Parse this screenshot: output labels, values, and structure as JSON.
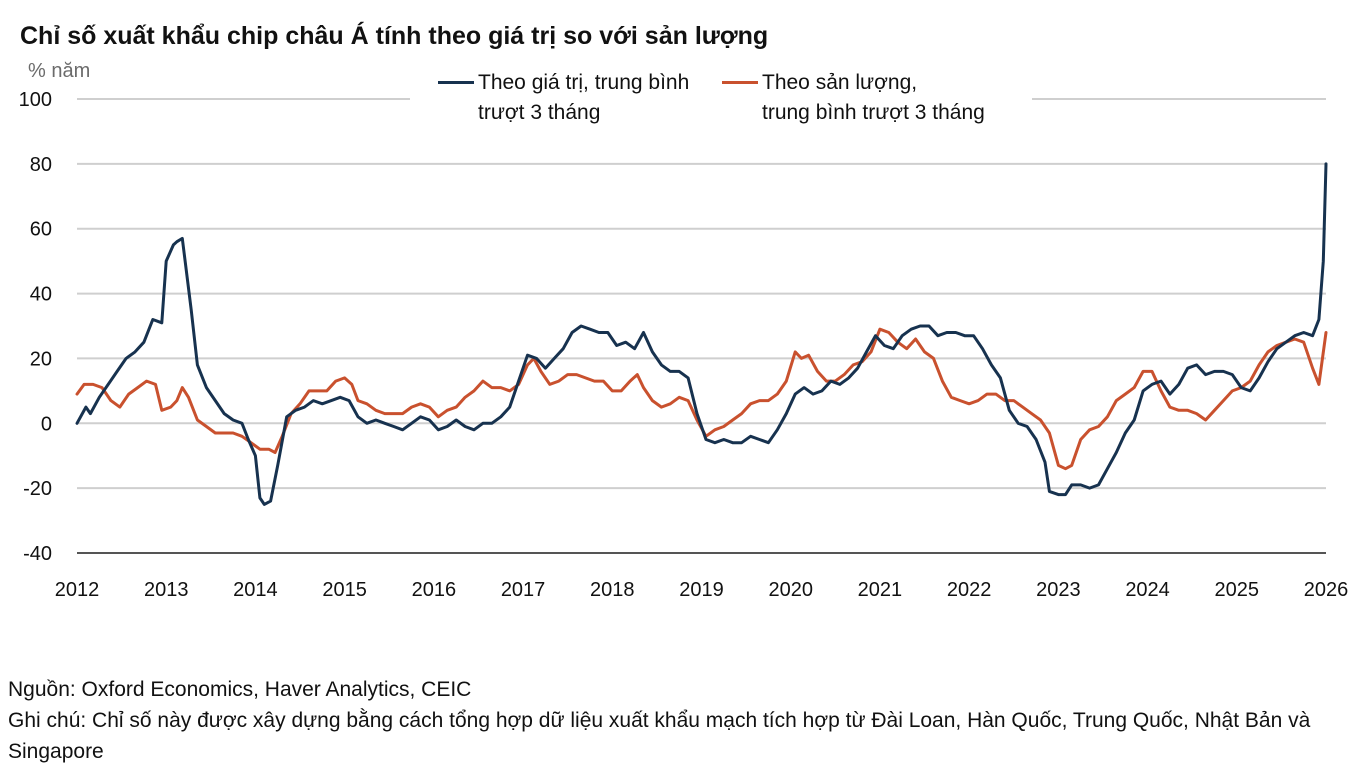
{
  "title": "Chỉ số xuất khẩu chip châu Á tính theo giá trị so với sản lượng",
  "unit_label": "% năm",
  "legend": {
    "value_line1": "Theo giá trị, trung bình",
    "value_line2": "trượt 3 tháng",
    "volume_line1": "Theo sản lượng,",
    "volume_line2": "trung bình trượt 3 tháng"
  },
  "footer": {
    "source": "Nguồn: Oxford Economics, Haver Analytics, CEIC",
    "note": "Ghi chú: Chỉ số này được xây dựng bằng cách tổng hợp dữ liệu xuất khẩu mạch tích hợp từ Đài Loan, Hàn Quốc, Trung Quốc, Nhật Bản và Singapore"
  },
  "chart_data": {
    "type": "line",
    "title": "Chỉ số xuất khẩu chip châu Á tính theo giá trị so với sản lượng",
    "ylabel": "% năm",
    "xlabel": "",
    "ylim": [
      -40,
      100
    ],
    "xlim": [
      2012,
      2026
    ],
    "yticks": [
      100,
      80,
      60,
      40,
      20,
      0,
      -20,
      -40
    ],
    "xticks": [
      2012,
      2013,
      2014,
      2015,
      2016,
      2017,
      2018,
      2019,
      2020,
      2021,
      2022,
      2023,
      2024,
      2025,
      2026
    ],
    "grid": "horizontal",
    "legend_position": "top-center",
    "series": [
      {
        "name": "Theo giá trị, trung bình trượt 3 tháng",
        "color": "#17324f",
        "points": [
          [
            2012.0,
            0
          ],
          [
            2012.1,
            5
          ],
          [
            2012.15,
            3
          ],
          [
            2012.25,
            8
          ],
          [
            2012.35,
            12
          ],
          [
            2012.45,
            16
          ],
          [
            2012.55,
            20
          ],
          [
            2012.65,
            22
          ],
          [
            2012.75,
            25
          ],
          [
            2012.85,
            32
          ],
          [
            2012.95,
            31
          ],
          [
            2013.0,
            50
          ],
          [
            2013.08,
            55
          ],
          [
            2013.12,
            56
          ],
          [
            2013.18,
            57
          ],
          [
            2013.28,
            35
          ],
          [
            2013.35,
            18
          ],
          [
            2013.45,
            11
          ],
          [
            2013.55,
            7
          ],
          [
            2013.65,
            3
          ],
          [
            2013.75,
            1
          ],
          [
            2013.85,
            0
          ],
          [
            2013.92,
            -5
          ],
          [
            2014.0,
            -10
          ],
          [
            2014.05,
            -23
          ],
          [
            2014.1,
            -25
          ],
          [
            2014.17,
            -24
          ],
          [
            2014.25,
            -13
          ],
          [
            2014.35,
            2
          ],
          [
            2014.45,
            4
          ],
          [
            2014.55,
            5
          ],
          [
            2014.65,
            7
          ],
          [
            2014.75,
            6
          ],
          [
            2014.85,
            7
          ],
          [
            2014.95,
            8
          ],
          [
            2015.05,
            7
          ],
          [
            2015.15,
            2
          ],
          [
            2015.25,
            0
          ],
          [
            2015.35,
            1
          ],
          [
            2015.45,
            0
          ],
          [
            2015.55,
            -1
          ],
          [
            2015.65,
            -2
          ],
          [
            2015.75,
            0
          ],
          [
            2015.85,
            2
          ],
          [
            2015.95,
            1
          ],
          [
            2016.05,
            -2
          ],
          [
            2016.15,
            -1
          ],
          [
            2016.25,
            1
          ],
          [
            2016.35,
            -1
          ],
          [
            2016.45,
            -2
          ],
          [
            2016.55,
            0
          ],
          [
            2016.65,
            0
          ],
          [
            2016.75,
            2
          ],
          [
            2016.85,
            5
          ],
          [
            2016.95,
            13
          ],
          [
            2017.05,
            21
          ],
          [
            2017.15,
            20
          ],
          [
            2017.25,
            17
          ],
          [
            2017.35,
            20
          ],
          [
            2017.45,
            23
          ],
          [
            2017.55,
            28
          ],
          [
            2017.65,
            30
          ],
          [
            2017.75,
            29
          ],
          [
            2017.85,
            28
          ],
          [
            2017.95,
            28
          ],
          [
            2018.05,
            24
          ],
          [
            2018.15,
            25
          ],
          [
            2018.25,
            23
          ],
          [
            2018.35,
            28
          ],
          [
            2018.45,
            22
          ],
          [
            2018.55,
            18
          ],
          [
            2018.65,
            16
          ],
          [
            2018.75,
            16
          ],
          [
            2018.85,
            14
          ],
          [
            2018.95,
            3
          ],
          [
            2019.05,
            -5
          ],
          [
            2019.15,
            -6
          ],
          [
            2019.25,
            -5
          ],
          [
            2019.35,
            -6
          ],
          [
            2019.45,
            -6
          ],
          [
            2019.55,
            -4
          ],
          [
            2019.65,
            -5
          ],
          [
            2019.75,
            -6
          ],
          [
            2019.85,
            -2
          ],
          [
            2019.95,
            3
          ],
          [
            2020.05,
            9
          ],
          [
            2020.15,
            11
          ],
          [
            2020.25,
            9
          ],
          [
            2020.35,
            10
          ],
          [
            2020.45,
            13
          ],
          [
            2020.55,
            12
          ],
          [
            2020.65,
            14
          ],
          [
            2020.75,
            17
          ],
          [
            2020.85,
            22
          ],
          [
            2020.95,
            27
          ],
          [
            2021.05,
            24
          ],
          [
            2021.15,
            23
          ],
          [
            2021.25,
            27
          ],
          [
            2021.35,
            29
          ],
          [
            2021.45,
            30
          ],
          [
            2021.55,
            30
          ],
          [
            2021.65,
            27
          ],
          [
            2021.75,
            28
          ],
          [
            2021.85,
            28
          ],
          [
            2021.95,
            27
          ],
          [
            2022.05,
            27
          ],
          [
            2022.15,
            23
          ],
          [
            2022.25,
            18
          ],
          [
            2022.35,
            14
          ],
          [
            2022.45,
            4
          ],
          [
            2022.55,
            0
          ],
          [
            2022.65,
            -1
          ],
          [
            2022.75,
            -5
          ],
          [
            2022.85,
            -12
          ],
          [
            2022.9,
            -21
          ],
          [
            2023.0,
            -22
          ],
          [
            2023.08,
            -22
          ],
          [
            2023.15,
            -19
          ],
          [
            2023.25,
            -19
          ],
          [
            2023.35,
            -20
          ],
          [
            2023.45,
            -19
          ],
          [
            2023.55,
            -14
          ],
          [
            2023.65,
            -9
          ],
          [
            2023.75,
            -3
          ],
          [
            2023.85,
            1
          ],
          [
            2023.95,
            10
          ],
          [
            2024.05,
            12
          ],
          [
            2024.15,
            13
          ],
          [
            2024.25,
            9
          ],
          [
            2024.35,
            12
          ],
          [
            2024.45,
            17
          ],
          [
            2024.55,
            18
          ],
          [
            2024.65,
            15
          ],
          [
            2024.75,
            16
          ],
          [
            2024.85,
            16
          ],
          [
            2024.95,
            15
          ],
          [
            2025.05,
            11
          ],
          [
            2025.15,
            10
          ],
          [
            2025.25,
            14
          ],
          [
            2025.35,
            19
          ],
          [
            2025.45,
            23
          ],
          [
            2025.55,
            25
          ],
          [
            2025.65,
            27
          ],
          [
            2025.75,
            28
          ],
          [
            2025.85,
            27
          ],
          [
            2025.92,
            32
          ],
          [
            2025.97,
            50
          ],
          [
            2026.0,
            80
          ]
        ]
      },
      {
        "name": "Theo sản lượng, trung bình trượt 3 tháng",
        "color": "#c9512e",
        "points": [
          [
            2012.0,
            9
          ],
          [
            2012.08,
            12
          ],
          [
            2012.18,
            12
          ],
          [
            2012.28,
            11
          ],
          [
            2012.38,
            7
          ],
          [
            2012.48,
            5
          ],
          [
            2012.58,
            9
          ],
          [
            2012.68,
            11
          ],
          [
            2012.78,
            13
          ],
          [
            2012.88,
            12
          ],
          [
            2012.95,
            4
          ],
          [
            2013.05,
            5
          ],
          [
            2013.12,
            7
          ],
          [
            2013.18,
            11
          ],
          [
            2013.25,
            8
          ],
          [
            2013.35,
            1
          ],
          [
            2013.45,
            -1
          ],
          [
            2013.55,
            -3
          ],
          [
            2013.65,
            -3
          ],
          [
            2013.75,
            -3
          ],
          [
            2013.85,
            -4
          ],
          [
            2013.95,
            -6
          ],
          [
            2014.05,
            -8
          ],
          [
            2014.15,
            -8
          ],
          [
            2014.22,
            -9
          ],
          [
            2014.3,
            -4
          ],
          [
            2014.4,
            3
          ],
          [
            2014.5,
            6
          ],
          [
            2014.6,
            10
          ],
          [
            2014.7,
            10
          ],
          [
            2014.8,
            10
          ],
          [
            2014.9,
            13
          ],
          [
            2015.0,
            14
          ],
          [
            2015.08,
            12
          ],
          [
            2015.15,
            7
          ],
          [
            2015.25,
            6
          ],
          [
            2015.35,
            4
          ],
          [
            2015.45,
            3
          ],
          [
            2015.55,
            3
          ],
          [
            2015.65,
            3
          ],
          [
            2015.75,
            5
          ],
          [
            2015.85,
            6
          ],
          [
            2015.95,
            5
          ],
          [
            2016.05,
            2
          ],
          [
            2016.15,
            4
          ],
          [
            2016.25,
            5
          ],
          [
            2016.35,
            8
          ],
          [
            2016.45,
            10
          ],
          [
            2016.55,
            13
          ],
          [
            2016.65,
            11
          ],
          [
            2016.75,
            11
          ],
          [
            2016.85,
            10
          ],
          [
            2016.95,
            12
          ],
          [
            2017.05,
            18
          ],
          [
            2017.12,
            20
          ],
          [
            2017.2,
            16
          ],
          [
            2017.3,
            12
          ],
          [
            2017.4,
            13
          ],
          [
            2017.5,
            15
          ],
          [
            2017.6,
            15
          ],
          [
            2017.7,
            14
          ],
          [
            2017.8,
            13
          ],
          [
            2017.9,
            13
          ],
          [
            2018.0,
            10
          ],
          [
            2018.1,
            10
          ],
          [
            2018.2,
            13
          ],
          [
            2018.28,
            15
          ],
          [
            2018.35,
            11
          ],
          [
            2018.45,
            7
          ],
          [
            2018.55,
            5
          ],
          [
            2018.65,
            6
          ],
          [
            2018.75,
            8
          ],
          [
            2018.85,
            7
          ],
          [
            2018.95,
            1
          ],
          [
            2019.05,
            -4
          ],
          [
            2019.15,
            -2
          ],
          [
            2019.25,
            -1
          ],
          [
            2019.35,
            1
          ],
          [
            2019.45,
            3
          ],
          [
            2019.55,
            6
          ],
          [
            2019.65,
            7
          ],
          [
            2019.75,
            7
          ],
          [
            2019.85,
            9
          ],
          [
            2019.95,
            13
          ],
          [
            2020.05,
            22
          ],
          [
            2020.12,
            20
          ],
          [
            2020.2,
            21
          ],
          [
            2020.3,
            16
          ],
          [
            2020.4,
            13
          ],
          [
            2020.5,
            13
          ],
          [
            2020.6,
            15
          ],
          [
            2020.7,
            18
          ],
          [
            2020.8,
            19
          ],
          [
            2020.9,
            22
          ],
          [
            2021.0,
            29
          ],
          [
            2021.1,
            28
          ],
          [
            2021.2,
            25
          ],
          [
            2021.3,
            23
          ],
          [
            2021.4,
            26
          ],
          [
            2021.5,
            22
          ],
          [
            2021.6,
            20
          ],
          [
            2021.7,
            13
          ],
          [
            2021.8,
            8
          ],
          [
            2021.9,
            7
          ],
          [
            2022.0,
            6
          ],
          [
            2022.1,
            7
          ],
          [
            2022.2,
            9
          ],
          [
            2022.3,
            9
          ],
          [
            2022.4,
            7
          ],
          [
            2022.5,
            7
          ],
          [
            2022.6,
            5
          ],
          [
            2022.7,
            3
          ],
          [
            2022.8,
            1
          ],
          [
            2022.9,
            -3
          ],
          [
            2023.0,
            -13
          ],
          [
            2023.08,
            -14
          ],
          [
            2023.15,
            -13
          ],
          [
            2023.25,
            -5
          ],
          [
            2023.35,
            -2
          ],
          [
            2023.45,
            -1
          ],
          [
            2023.55,
            2
          ],
          [
            2023.65,
            7
          ],
          [
            2023.75,
            9
          ],
          [
            2023.85,
            11
          ],
          [
            2023.95,
            16
          ],
          [
            2024.05,
            16
          ],
          [
            2024.15,
            10
          ],
          [
            2024.25,
            5
          ],
          [
            2024.35,
            4
          ],
          [
            2024.45,
            4
          ],
          [
            2024.55,
            3
          ],
          [
            2024.65,
            1
          ],
          [
            2024.75,
            4
          ],
          [
            2024.85,
            7
          ],
          [
            2024.95,
            10
          ],
          [
            2025.05,
            11
          ],
          [
            2025.15,
            13
          ],
          [
            2025.25,
            18
          ],
          [
            2025.35,
            22
          ],
          [
            2025.45,
            24
          ],
          [
            2025.55,
            25
          ],
          [
            2025.65,
            26
          ],
          [
            2025.75,
            25
          ],
          [
            2025.85,
            17
          ],
          [
            2025.92,
            12
          ],
          [
            2026.0,
            28
          ]
        ]
      }
    ]
  }
}
